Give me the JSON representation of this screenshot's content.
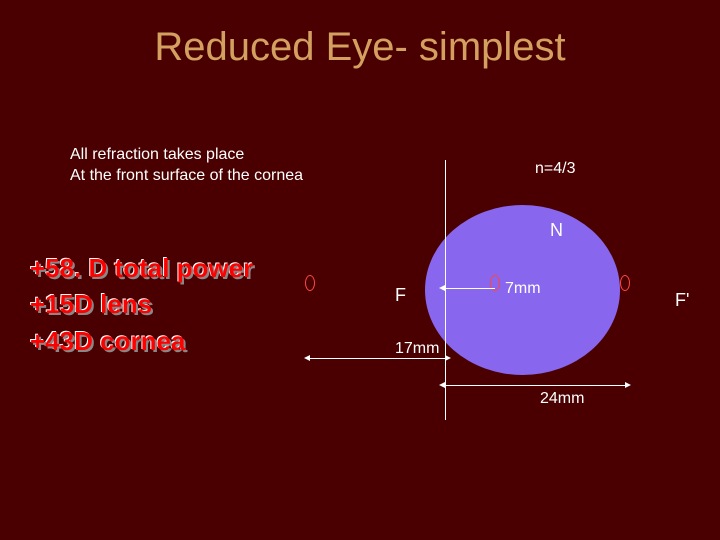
{
  "title": "Reduced Eye- simplest",
  "description_line1": "All refraction takes place",
  "description_line2": "At the front surface of the cornea",
  "power": {
    "total": "+58. D total power",
    "lens": "+15D lens",
    "cornea": "+43D cornea"
  },
  "diagram": {
    "refractive_index": "n=4/3",
    "nodal_label": "N",
    "front_focal_label": "F",
    "back_focal_label": "F'",
    "nodal_distance": "7mm",
    "front_focal_distance": "17mm",
    "axial_length": "24mm",
    "eye_color": "#8866ee",
    "marker_color": "#ff4444",
    "line_color": "#ffffff"
  },
  "colors": {
    "background": "#4a0000",
    "title": "#d4a060",
    "text": "#ffffff",
    "power_text": "#ff0000"
  }
}
